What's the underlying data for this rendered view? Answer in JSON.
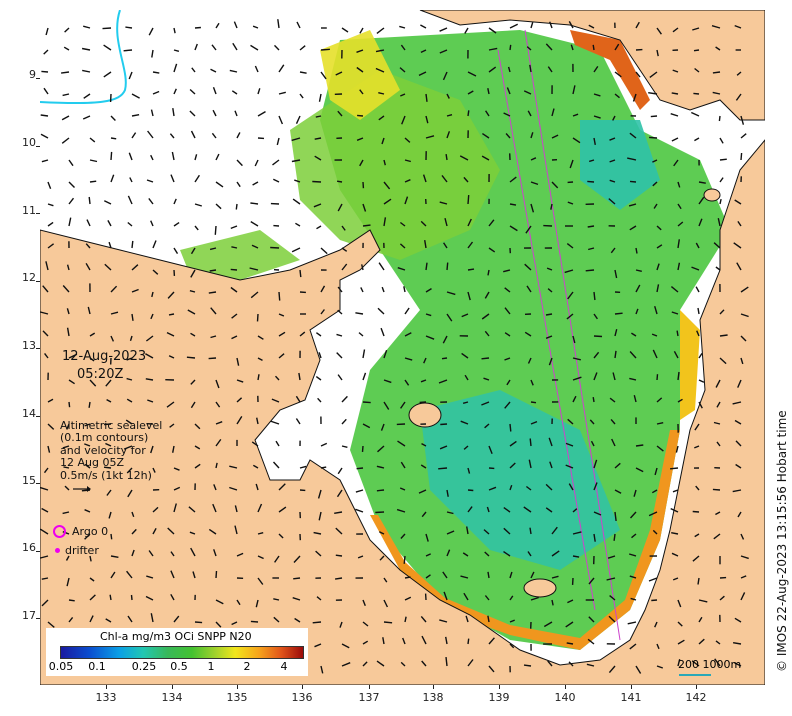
{
  "map": {
    "date": "12-Aug-2023",
    "time": "05:20Z",
    "y_ticks": [
      "9",
      "10",
      "11",
      "12",
      "13",
      "14",
      "15",
      "16",
      "17"
    ],
    "x_ticks": [
      "133",
      "134",
      "135",
      "136",
      "137",
      "138",
      "139",
      "140",
      "141",
      "142"
    ],
    "colors": {
      "land": "#f7c99a",
      "ocean_nodata": "#ffffff",
      "coast": "#111111",
      "arrows": "#111111",
      "argo": "#ee00ee",
      "scale_line": "#2aa8b8"
    }
  },
  "legend": {
    "altimetry_lines": [
      "Altimetric sealevel",
      "(0.1m contours)",
      "and velocity for",
      "12 Aug 05Z",
      "0.5m/s (1kt 12h)"
    ],
    "argo_label": "Argo 0",
    "drifter_label": "drifter"
  },
  "colorbar": {
    "title": "Chl-a mg/m3 OCi SNPP N20",
    "ticks": [
      "0.05",
      "0.1",
      "0.25",
      "0.5",
      "1",
      "2",
      "4"
    ]
  },
  "scalebar": {
    "label": "200  1000m"
  },
  "credit": "© IMOS 22-Aug-2023 13:15:56 Hobart time"
}
